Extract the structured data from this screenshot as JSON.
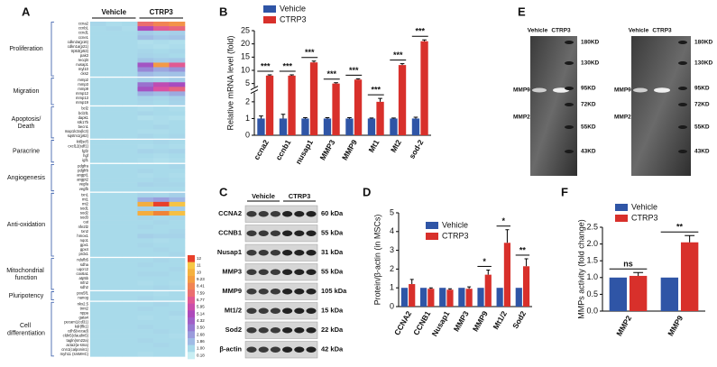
{
  "panel_labels": [
    "A",
    "B",
    "C",
    "D",
    "E",
    "F"
  ],
  "heatmap": {
    "columns": [
      "Vehicle",
      "CTRP3"
    ],
    "groups": [
      {
        "label": "Proliferation",
        "color": "#d42a24",
        "rows": [
          {
            "gene": "ccna2",
            "values": [
              1.1,
              0.9,
              1.0,
              7.6,
              8.4,
              8.9
            ]
          },
          {
            "gene": "ccnb1",
            "values": [
              1.0,
              1.1,
              0.9,
              5.2,
              6.8,
              7.3
            ]
          },
          {
            "gene": "ccnd1",
            "values": [
              1,
              1,
              1,
              1.4,
              1.2,
              1.3
            ]
          },
          {
            "gene": "ccne1",
            "values": [
              1,
              1,
              1,
              1.8,
              1.5,
              1.6
            ]
          },
          {
            "gene": "cdkn2a(p16)",
            "values": [
              1,
              1,
              1,
              0.8,
              0.9,
              0.8
            ]
          },
          {
            "gene": "cdkn1a(p21)",
            "values": [
              1,
              1,
              1,
              0.9,
              0.8,
              0.9
            ]
          },
          {
            "gene": "trp53(p53)",
            "values": [
              1,
              1,
              1,
              1.1,
              1,
              1.1
            ]
          },
          {
            "gene": "pak3",
            "values": [
              1,
              1,
              1,
              1.2,
              1.1,
              1
            ]
          },
          {
            "gene": "recql4",
            "values": [
              1,
              1,
              1,
              1.6,
              1.4,
              1.5
            ]
          },
          {
            "gene": "nusap1",
            "values": [
              1,
              1,
              1,
              4.6,
              9.1,
              6.8
            ]
          },
          {
            "gene": "myl10",
            "values": [
              1,
              1,
              1,
              3.2,
              2.4,
              2.9
            ]
          },
          {
            "gene": "cks2",
            "values": [
              1,
              1,
              1,
              1.9,
              1.6,
              1.7
            ]
          }
        ]
      },
      {
        "label": "Migration",
        "color": "#d42a24",
        "rows": [
          {
            "gene": "mmp2",
            "values": [
              1,
              1,
              1,
              1.3,
              1.2,
              1.4
            ]
          },
          {
            "gene": "mmp3",
            "values": [
              1,
              1,
              1,
              3.8,
              5.6,
              4.9
            ]
          },
          {
            "gene": "mmp9",
            "values": [
              1,
              1,
              1,
              4.7,
              6.4,
              7.2
            ]
          },
          {
            "gene": "mmp12",
            "values": [
              1,
              1,
              1,
              2.1,
              1.8,
              2.3
            ]
          },
          {
            "gene": "mmp13",
            "values": [
              1,
              1,
              1,
              1.2,
              1.1,
              1.3
            ]
          },
          {
            "gene": "mmp19",
            "values": [
              1,
              1,
              1,
              1.1,
              1,
              1.2
            ]
          }
        ]
      },
      {
        "label": "Apoptosis/Death",
        "color": "#222222",
        "rows": [
          {
            "gene": "bcl2",
            "values": [
              1,
              1,
              1,
              0.9,
              1,
              0.9
            ]
          },
          {
            "gene": "bcl2l1",
            "values": [
              1,
              1,
              1,
              1.1,
              1,
              1
            ]
          },
          {
            "gene": "dapk1",
            "values": [
              1,
              1,
              1,
              0.8,
              0.9,
              0.8
            ]
          },
          {
            "gene": "stk17b",
            "values": [
              1,
              1,
              1,
              1,
              0.9,
              1
            ]
          },
          {
            "gene": "becn1",
            "values": [
              1,
              1,
              1,
              1,
              1.1,
              1
            ]
          },
          {
            "gene": "map1lc3a(lc3)",
            "values": [
              1,
              1,
              1,
              0.9,
              0.9,
              1
            ]
          },
          {
            "gene": "sqstm1(p62)",
            "values": [
              1,
              1,
              1,
              1.1,
              1,
              1.1
            ]
          }
        ]
      },
      {
        "label": "Paracrine",
        "color": "#222222",
        "rows": [
          {
            "gene": "kitl(scf)",
            "values": [
              1,
              1,
              1,
              1,
              1.1,
              1
            ]
          },
          {
            "gene": "cxcl12(sdf1)",
            "values": [
              1,
              1,
              1,
              0.9,
              1,
              0.9
            ]
          },
          {
            "gene": "fgf2",
            "values": [
              1,
              1,
              1,
              1.2,
              1.1,
              1.2
            ]
          },
          {
            "gene": "hgf",
            "values": [
              1,
              1,
              1,
              1,
              0.9,
              1
            ]
          },
          {
            "gene": "igf1",
            "values": [
              1,
              1,
              1,
              0.9,
              0.8,
              0.9
            ]
          }
        ]
      },
      {
        "label": "Angiogenesis",
        "color": "#222222",
        "rows": [
          {
            "gene": "pdgfra",
            "values": [
              1,
              1,
              1,
              1,
              1,
              1.1
            ]
          },
          {
            "gene": "pdgfrb",
            "values": [
              1,
              1,
              1,
              1.1,
              1,
              1
            ]
          },
          {
            "gene": "angpt1",
            "values": [
              1,
              1,
              1,
              0.9,
              1,
              0.9
            ]
          },
          {
            "gene": "angpt2",
            "values": [
              1,
              1,
              1,
              1,
              1.1,
              1
            ]
          },
          {
            "gene": "vegfa",
            "values": [
              1,
              1,
              1,
              1.2,
              1.1,
              1.1
            ]
          },
          {
            "gene": "vegfb",
            "values": [
              1,
              1,
              1,
              1,
              1,
              1
            ]
          }
        ]
      },
      {
        "label": "Anti-oxidation",
        "color": "#d42a24",
        "rows": [
          {
            "gene": "txn1",
            "values": [
              1,
              1,
              1,
              1.2,
              1.1,
              1.3
            ]
          },
          {
            "gene": "mt1",
            "values": [
              1,
              1,
              1,
              2.2,
              2.6,
              2.0
            ]
          },
          {
            "gene": "mt2",
            "values": [
              1,
              1,
              1,
              11.2,
              12,
              10.8
            ]
          },
          {
            "gene": "sod1",
            "values": [
              1,
              1,
              1,
              1.3,
              1.2,
              1.4
            ]
          },
          {
            "gene": "sod2",
            "values": [
              1,
              1,
              1,
              9.8,
              11.5,
              10.6
            ]
          },
          {
            "gene": "sod3",
            "values": [
              1,
              1,
              1,
              1.1,
              1,
              1.1
            ]
          },
          {
            "gene": "cat",
            "values": [
              1,
              1,
              1,
              1,
              1.1,
              1
            ]
          },
          {
            "gene": "nfe2l2",
            "values": [
              1,
              1,
              1,
              1.1,
              1,
              1
            ]
          },
          {
            "gene": "txn2",
            "values": [
              1,
              1,
              1,
              1,
              1,
              1.1
            ]
          },
          {
            "gene": "hmox1",
            "values": [
              1,
              1,
              1,
              1.3,
              1.2,
              1.2
            ]
          },
          {
            "gene": "nqo1",
            "values": [
              1,
              1,
              1,
              1,
              0.9,
              1
            ]
          },
          {
            "gene": "gpx1",
            "values": [
              1,
              1,
              1,
              1.1,
              1,
              1
            ]
          },
          {
            "gene": "gpx4",
            "values": [
              1,
              1,
              1,
              1,
              1.1,
              1
            ]
          },
          {
            "gene": "prdx1",
            "values": [
              1,
              1,
              1,
              1,
              1,
              1.1
            ]
          }
        ]
      },
      {
        "label": "Mitochondrial function",
        "color": "#222222",
        "rows": [
          {
            "gene": "ndufb5",
            "values": [
              1,
              1,
              1,
              1,
              1.1,
              1
            ]
          },
          {
            "gene": "sdha",
            "values": [
              1,
              1,
              1,
              1.1,
              1,
              1
            ]
          },
          {
            "gene": "uqcrc2",
            "values": [
              1,
              1,
              1,
              1,
              1,
              1.1
            ]
          },
          {
            "gene": "cox6a1",
            "values": [
              1,
              1,
              1,
              1.1,
              1.1,
              1
            ]
          },
          {
            "gene": "atp5b",
            "values": [
              1,
              1,
              1,
              1,
              1,
              1
            ]
          },
          {
            "gene": "mfn2",
            "values": [
              1,
              1,
              1,
              0.9,
              1,
              0.9
            ]
          },
          {
            "gene": "sdh2",
            "values": [
              1,
              1,
              1,
              1,
              1.1,
              1
            ]
          }
        ]
      },
      {
        "label": "Pluripotency",
        "color": "#222222",
        "rows": [
          {
            "gene": "pou5f1",
            "values": [
              1,
              1,
              1,
              1,
              0.9,
              1
            ]
          },
          {
            "gene": "nanog",
            "values": [
              1,
              1,
              1,
              1.1,
              1,
              1
            ]
          }
        ]
      },
      {
        "label": "Cell differentiation",
        "color": "#222222",
        "rows": [
          {
            "gene": "nkx2.5",
            "values": [
              1,
              1,
              1,
              1,
              1.1,
              1
            ]
          },
          {
            "gene": "tnnt2",
            "values": [
              1,
              1,
              1,
              1.1,
              1,
              1
            ]
          },
          {
            "gene": "nppa",
            "values": [
              1,
              1,
              1,
              1,
              1,
              1.1
            ]
          },
          {
            "gene": "gata4",
            "values": [
              1,
              1,
              1,
              0.9,
              1,
              0.9
            ]
          },
          {
            "gene": "pecam1(cd31)",
            "values": [
              1,
              1,
              1,
              1,
              1,
              1
            ]
          },
          {
            "gene": "kdr(flk1)",
            "values": [
              1,
              1,
              1,
              1.1,
              1,
              1
            ]
          },
          {
            "gene": "cdh5(vecad)",
            "values": [
              1,
              1,
              1,
              1,
              1.1,
              1
            ]
          },
          {
            "gene": "cldn5(claudin5)",
            "values": [
              1,
              1,
              1,
              1,
              1,
              0.9
            ]
          },
          {
            "gene": "tagln(sm22a)",
            "values": [
              1,
              1,
              1,
              1.1,
              1,
              1
            ]
          },
          {
            "gene": "acta2(a-sma)",
            "values": [
              1,
              1,
              1,
              1,
              1.1,
              1
            ]
          },
          {
            "gene": "cnn1(calponin1)",
            "values": [
              1,
              1,
              1,
              1,
              1,
              1
            ]
          },
          {
            "gene": "myh11 (smMHC)",
            "values": [
              1,
              1,
              1,
              0.9,
              1,
              1
            ]
          }
        ]
      }
    ],
    "scale": {
      "ticks": [
        12,
        11,
        10,
        9.23,
        8.41,
        7.59,
        6.77,
        5.95,
        5.14,
        4.32,
        {
          "value": 3.5,
          "label": "3.50"
        },
        2.68,
        1.86,
        {
          "value": 1,
          "label": "1.00"
        },
        0.18
      ]
    }
  },
  "chart_data": [
    {
      "type": "bar",
      "ylabel": "Relative mRNA level (fold)",
      "categories": [
        "ccna2",
        "ccnb1",
        "nusap1",
        "MMP3",
        "MMP9",
        "Mt1",
        "Mt2",
        "sod-2"
      ],
      "series": [
        {
          "name": "Vehicle",
          "color": "#2f55a6",
          "values": [
            1,
            1,
            1,
            1,
            1,
            1,
            1,
            1
          ],
          "errors": [
            0.15,
            0.25,
            0.05,
            0.05,
            0.05,
            0.03,
            0.03,
            0.08
          ]
        },
        {
          "name": "CTRP3",
          "color": "#d8302b",
          "values": [
            8,
            8,
            13,
            5,
            6.5,
            2,
            12,
            21
          ],
          "errors": [
            0.3,
            0.3,
            0.5,
            0.3,
            0.3,
            0.2,
            0.5,
            0.5
          ]
        }
      ],
      "significance": [
        "***",
        "***",
        "***",
        "***",
        "***",
        "***",
        "***",
        "***"
      ],
      "ylim": [
        0,
        25
      ],
      "ybreak": [
        2.5,
        4
      ],
      "yticks": [
        0,
        1,
        2,
        5,
        10,
        15,
        20,
        25
      ]
    },
    {
      "type": "bar",
      "ylabel": "Protein/β-actin (in MSCs)",
      "categories": [
        "CCNA2",
        "CCNB1",
        "Nusap1",
        "MMP3",
        "MMP9",
        "Mt1/2",
        "Sod2"
      ],
      "series": [
        {
          "name": "Vehicle",
          "color": "#2f55a6",
          "values": [
            1,
            1,
            1,
            1,
            1,
            1,
            1
          ]
        },
        {
          "name": "CTRP3",
          "color": "#d8302b",
          "values": [
            1.2,
            0.95,
            0.9,
            0.95,
            1.7,
            3.4,
            2.15
          ],
          "errors": [
            0.25,
            0.05,
            0.05,
            0.1,
            0.25,
            0.7,
            0.4
          ]
        }
      ],
      "significance": [
        null,
        null,
        null,
        null,
        "*",
        "*",
        "**"
      ],
      "ylim": [
        0,
        5
      ],
      "yticks": [
        0,
        1,
        2,
        3,
        4,
        5
      ]
    },
    {
      "type": "bar",
      "ylabel": "MMPs activity (fold change)",
      "categories": [
        "MMP2",
        "MMP9"
      ],
      "series": [
        {
          "name": "Vehicle",
          "color": "#2f55a6",
          "values": [
            1,
            1
          ]
        },
        {
          "name": "CTRP3",
          "color": "#d8302b",
          "values": [
            1.05,
            2.05
          ],
          "errors": [
            0.1,
            0.2
          ]
        }
      ],
      "significance": [
        "ns",
        "**"
      ],
      "ylim": [
        0,
        2.5
      ],
      "yticks": [
        {
          "value": 0,
          "label": "0.0"
        },
        0.5,
        {
          "value": 1,
          "label": "1.0"
        },
        1.5,
        {
          "value": 2,
          "label": "2.0"
        },
        2.5
      ]
    }
  ],
  "blot": {
    "columns": [
      "Vehicle",
      "CTRP3"
    ],
    "rows": [
      {
        "protein": "CCNA2",
        "size": "60 kDa"
      },
      {
        "protein": "CCNB1",
        "size": "55 kDa"
      },
      {
        "protein": "Nusap1",
        "size": "31 kDa"
      },
      {
        "protein": "MMP3",
        "size": "55 kDa"
      },
      {
        "protein": "MMP9",
        "size": "105 kDa"
      },
      {
        "protein": "Mt1/2",
        "size": "15 kDa"
      },
      {
        "protein": "Sod2",
        "size": "22 kDa"
      },
      {
        "protein": "β-actin",
        "size": "42 kDa"
      }
    ]
  },
  "zymography": {
    "columns": [
      "Vehicle",
      "CTRP3"
    ],
    "bands": [
      "MMP9",
      "MMP2"
    ],
    "markers": [
      "180KD",
      "130KD",
      "95KD",
      "72KD",
      "55KD",
      "43KD"
    ]
  }
}
